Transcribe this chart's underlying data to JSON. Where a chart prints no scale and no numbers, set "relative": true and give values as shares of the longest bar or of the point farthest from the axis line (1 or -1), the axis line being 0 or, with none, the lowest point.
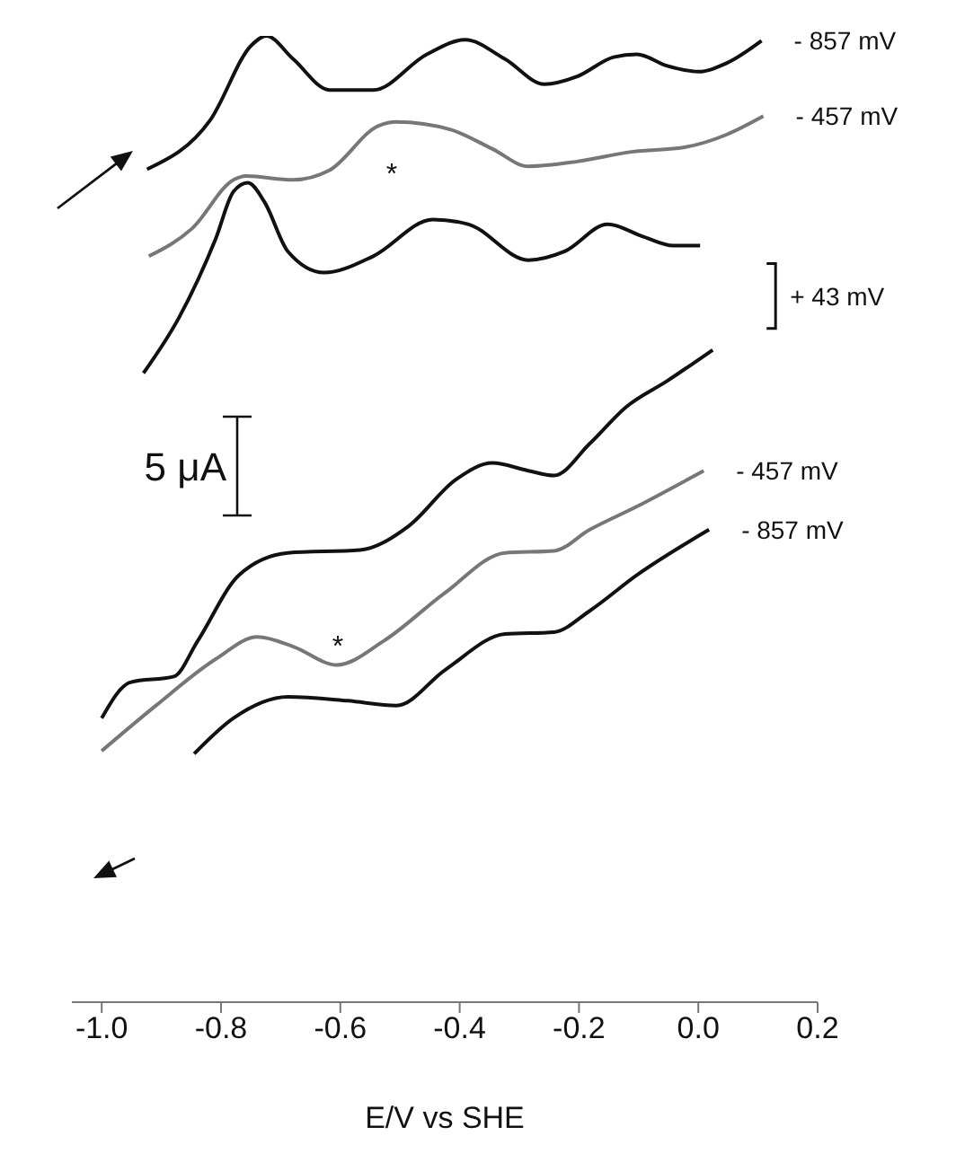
{
  "chart_data": {
    "type": "line",
    "relative": true,
    "xlabel": "E/V vs SHE",
    "xlim": [
      -1.05,
      0.2
    ],
    "xticks": [
      {
        "value": -1,
        "label": "-1.0"
      },
      -0.8,
      -0.6,
      -0.4,
      -0.2,
      {
        "value": 0,
        "label": "0.0"
      },
      0.2
    ],
    "series": [
      {
        "name": "- 857 mV",
        "color": "#111111",
        "x": [
          -0.924,
          -0.818,
          -0.748,
          -0.724,
          -0.679,
          -0.618,
          -0.545,
          -0.455,
          -0.391,
          -0.324,
          -0.258,
          -0.203,
          -0.142,
          -0.103,
          -0.052,
          0.0,
          0.048,
          0.106
        ],
        "values": [
          0.862,
          0.913,
          0.991,
          1.0,
          0.976,
          0.944,
          0.944,
          0.981,
          0.996,
          0.976,
          0.95,
          0.958,
          0.978,
          0.981,
          0.969,
          0.963,
          0.972,
          0.995
        ]
      },
      {
        "name": "- 457 mV",
        "color": "#777777",
        "x": [
          -0.921,
          -0.848,
          -0.779,
          -0.758,
          -0.679,
          -0.618,
          -0.536,
          -0.506,
          -0.415,
          -0.345,
          -0.285,
          -0.203,
          -0.112,
          -0.021,
          0.048,
          0.109
        ],
        "values": [
          0.772,
          0.801,
          0.851,
          0.855,
          0.851,
          0.861,
          0.907,
          0.911,
          0.903,
          0.883,
          0.865,
          0.87,
          0.88,
          0.885,
          0.898,
          0.917
        ]
      },
      {
        "name": "+ 43 mV",
        "color": "#111111",
        "x": [
          -0.93,
          -0.87,
          -0.809,
          -0.779,
          -0.755,
          -0.727,
          -0.688,
          -0.627,
          -0.545,
          -0.445,
          -0.385,
          -0.285,
          -0.224,
          -0.152,
          -0.091,
          -0.042,
          0.003
        ],
        "values": [
          0.651,
          0.709,
          0.79,
          0.839,
          0.848,
          0.828,
          0.777,
          0.755,
          0.772,
          0.81,
          0.805,
          0.768,
          0.777,
          0.805,
          0.792,
          0.783,
          0.783
        ]
      },
      {
        "color": "#111111",
        "x": [
          -1.0,
          -0.952,
          -0.879,
          -0.839,
          -0.77,
          -0.688,
          -0.567,
          -0.485,
          -0.406,
          -0.345,
          -0.285,
          -0.242,
          -0.182,
          -0.121,
          -0.052,
          0.024
        ],
        "values": [
          0.294,
          0.331,
          0.337,
          0.374,
          0.442,
          0.465,
          0.468,
          0.493,
          0.541,
          0.558,
          0.55,
          0.545,
          0.578,
          0.616,
          0.643,
          0.675
        ]
      },
      {
        "name": "- 457 mV",
        "color": "#777777",
        "x": [
          -1.0,
          -0.909,
          -0.809,
          -0.739,
          -0.679,
          -0.606,
          -0.527,
          -0.424,
          -0.324,
          -0.242,
          -0.182,
          -0.103,
          0.009
        ],
        "values": [
          0.26,
          0.307,
          0.355,
          0.378,
          0.368,
          0.349,
          0.374,
          0.424,
          0.465,
          0.467,
          0.489,
          0.513,
          0.55
        ]
      },
      {
        "name": "- 857 mV",
        "color": "#111111",
        "x": [
          -0.845,
          -0.779,
          -0.688,
          -0.588,
          -0.506,
          -0.424,
          -0.324,
          -0.242,
          -0.182,
          -0.103,
          0.018
        ],
        "values": [
          0.257,
          0.294,
          0.316,
          0.312,
          0.307,
          0.344,
          0.381,
          0.383,
          0.405,
          0.442,
          0.489
        ]
      }
    ],
    "annotations": [
      "5 μA",
      "*",
      "*"
    ]
  }
}
